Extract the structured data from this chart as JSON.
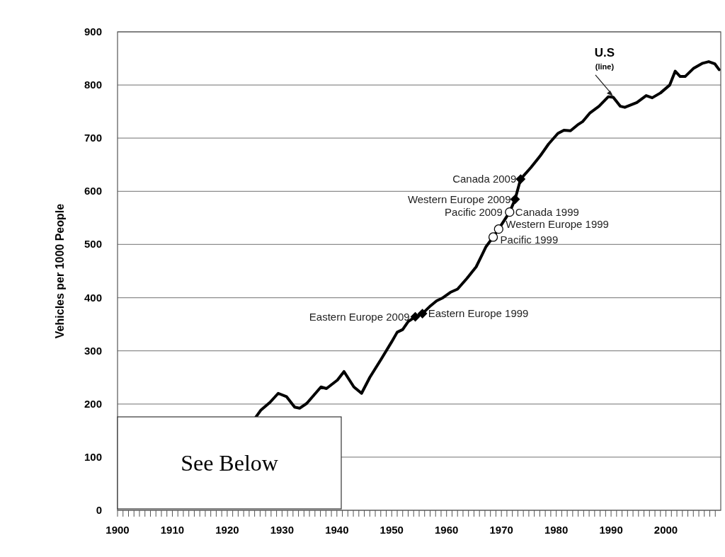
{
  "chart_data": {
    "type": "line",
    "ylabel": "Vehicles per 1000 People",
    "xlim": [
      1900,
      2010
    ],
    "xticks": [
      1900,
      {
        "value": 1901,
        "label": null
      },
      {
        "value": 1902,
        "label": null
      },
      {
        "value": 1903,
        "label": null
      },
      {
        "value": 1904,
        "label": null
      },
      {
        "value": 1905,
        "label": null
      },
      {
        "value": 1906,
        "label": null
      },
      {
        "value": 1907,
        "label": null
      },
      {
        "value": 1908,
        "label": null
      },
      {
        "value": 1909,
        "label": null
      },
      1910,
      {
        "value": 1911,
        "label": null
      },
      {
        "value": 1912,
        "label": null
      },
      {
        "value": 1913,
        "label": null
      },
      {
        "value": 1914,
        "label": null
      },
      {
        "value": 1915,
        "label": null
      },
      {
        "value": 1916,
        "label": null
      },
      {
        "value": 1917,
        "label": null
      },
      {
        "value": 1918,
        "label": null
      },
      {
        "value": 1919,
        "label": null
      },
      1920,
      {
        "value": 1921,
        "label": null
      },
      {
        "value": 1922,
        "label": null
      },
      {
        "value": 1923,
        "label": null
      },
      {
        "value": 1924,
        "label": null
      },
      {
        "value": 1925,
        "label": null
      },
      {
        "value": 1926,
        "label": null
      },
      {
        "value": 1927,
        "label": null
      },
      {
        "value": 1928,
        "label": null
      },
      {
        "value": 1929,
        "label": null
      },
      1930,
      {
        "value": 1931,
        "label": null
      },
      {
        "value": 1932,
        "label": null
      },
      {
        "value": 1933,
        "label": null
      },
      {
        "value": 1934,
        "label": null
      },
      {
        "value": 1935,
        "label": null
      },
      {
        "value": 1936,
        "label": null
      },
      {
        "value": 1937,
        "label": null
      },
      {
        "value": 1938,
        "label": null
      },
      {
        "value": 1939,
        "label": null
      },
      1940,
      {
        "value": 1941,
        "label": null
      },
      {
        "value": 1942,
        "label": null
      },
      {
        "value": 1943,
        "label": null
      },
      {
        "value": 1944,
        "label": null
      },
      {
        "value": 1945,
        "label": null
      },
      {
        "value": 1946,
        "label": null
      },
      {
        "value": 1947,
        "label": null
      },
      {
        "value": 1948,
        "label": null
      },
      {
        "value": 1949,
        "label": null
      },
      1950,
      {
        "value": 1951,
        "label": null
      },
      {
        "value": 1952,
        "label": null
      },
      {
        "value": 1953,
        "label": null
      },
      {
        "value": 1954,
        "label": null
      },
      {
        "value": 1955,
        "label": null
      },
      {
        "value": 1956,
        "label": null
      },
      {
        "value": 1957,
        "label": null
      },
      {
        "value": 1958,
        "label": null
      },
      {
        "value": 1959,
        "label": null
      },
      1960,
      {
        "value": 1961,
        "label": null
      },
      {
        "value": 1962,
        "label": null
      },
      {
        "value": 1963,
        "label": null
      },
      {
        "value": 1964,
        "label": null
      },
      {
        "value": 1965,
        "label": null
      },
      {
        "value": 1966,
        "label": null
      },
      {
        "value": 1967,
        "label": null
      },
      {
        "value": 1968,
        "label": null
      },
      {
        "value": 1969,
        "label": null
      },
      1970,
      {
        "value": 1971,
        "label": null
      },
      {
        "value": 1972,
        "label": null
      },
      {
        "value": 1973,
        "label": null
      },
      {
        "value": 1974,
        "label": null
      },
      {
        "value": 1975,
        "label": null
      },
      {
        "value": 1976,
        "label": null
      },
      {
        "value": 1977,
        "label": null
      },
      {
        "value": 1978,
        "label": null
      },
      {
        "value": 1979,
        "label": null
      },
      1980,
      {
        "value": 1981,
        "label": null
      },
      {
        "value": 1982,
        "label": null
      },
      {
        "value": 1983,
        "label": null
      },
      {
        "value": 1984,
        "label": null
      },
      {
        "value": 1985,
        "label": null
      },
      {
        "value": 1986,
        "label": null
      },
      {
        "value": 1987,
        "label": null
      },
      {
        "value": 1988,
        "label": null
      },
      {
        "value": 1989,
        "label": null
      },
      1990,
      {
        "value": 1991,
        "label": null
      },
      {
        "value": 1992,
        "label": null
      },
      {
        "value": 1993,
        "label": null
      },
      {
        "value": 1994,
        "label": null
      },
      {
        "value": 1995,
        "label": null
      },
      {
        "value": 1996,
        "label": null
      },
      {
        "value": 1997,
        "label": null
      },
      {
        "value": 1998,
        "label": null
      },
      {
        "value": 1999,
        "label": null
      },
      2000,
      {
        "value": 2001,
        "label": null
      },
      {
        "value": 2002,
        "label": null
      },
      {
        "value": 2003,
        "label": null
      },
      {
        "value": 2004,
        "label": null
      },
      {
        "value": 2005,
        "label": null
      },
      {
        "value": 2006,
        "label": null
      },
      {
        "value": 2007,
        "label": null
      },
      {
        "value": 2008,
        "label": null
      },
      {
        "value": 2009,
        "label": null
      }
    ],
    "ylim": [
      0,
      900
    ],
    "yticks": [
      0,
      100,
      200,
      300,
      400,
      500,
      600,
      700,
      800,
      900
    ],
    "grid": "y",
    "series": [
      {
        "color": "#000000",
        "x": [
          1925.2,
          1926.1,
          1927.8,
          1929.3,
          1930.8,
          1932.3,
          1933.2,
          1934.5,
          1937.1,
          1938.1,
          1940.1,
          1941.3,
          1943.1,
          1944.5,
          1946,
          1948,
          1950,
          1951,
          1952,
          1953,
          1954.3,
          1955.6,
          1956.9,
          1958.2,
          1959.2,
          1960.7,
          1962,
          1963.7,
          1965.4,
          1966.5,
          1967.2,
          1968.5,
          1969.5,
          1971.5,
          1972.5,
          1973.5,
          1975.4,
          1977.1,
          1978.6,
          1980.3,
          1981.4,
          1982.6,
          1983.9,
          1984.8,
          1986.1,
          1987.8,
          1989.5,
          1990.4,
          1991.7,
          1992.5,
          1994.7,
          1996.4,
          1997.5,
          1999,
          2000.7,
          2001.7,
          2002.6,
          2003.5,
          2005,
          2006.7,
          2007.8,
          2008.9,
          2009.7
        ],
        "values": [
          175,
          188,
          203,
          220,
          214,
          194,
          192,
          201,
          232,
          229,
          245,
          261,
          232,
          220,
          250,
          283,
          317,
          335,
          340,
          355,
          364,
          370,
          383,
          394,
          399,
          410,
          416,
          436,
          458,
          481,
          496,
          514,
          529,
          561,
          585,
          623,
          645,
          667,
          689,
          709,
          715,
          714,
          725,
          731,
          747,
          760,
          778,
          777,
          760,
          758,
          767,
          780,
          776,
          785,
          800,
          826,
          816,
          816,
          831,
          841,
          844,
          840,
          829
        ]
      },
      {
        "type": "scatter",
        "marker": "diamond",
        "color": "#000000",
        "x": [
          1973.5,
          1972.5,
          1954.3,
          1955.6
        ],
        "values": [
          623,
          585,
          364,
          370
        ]
      },
      {
        "type": "scatter",
        "marker": "circle",
        "color": "#ffffff",
        "x": [
          1971.5,
          1969.5,
          1968.5
        ],
        "values": [
          561,
          529,
          514
        ]
      }
    ],
    "annotations": [
      {
        "text": "Canada 2009",
        "x": 1973.5,
        "y": 623
      },
      {
        "text": "Western Europe 2009",
        "x": 1972.5,
        "y": 585
      },
      {
        "text": "Pacific 2009",
        "x": 1971.5,
        "y": 561
      },
      {
        "text": "Canada 1999",
        "x": 1971.5,
        "y": 561
      },
      {
        "text": "Western Europe 1999",
        "x": 1969.5,
        "y": 529
      },
      {
        "text": "Pacific 1999",
        "x": 1968.5,
        "y": 514
      },
      {
        "text": "Eastern Europe 2009",
        "x": 1954.3,
        "y": 364
      },
      {
        "text": "Eastern Europe 1999",
        "x": 1955.6,
        "y": 370
      },
      {
        "text": "U.S",
        "x": 1990.5,
        "y": 775
      },
      "(line)",
      "See Below"
    ]
  }
}
